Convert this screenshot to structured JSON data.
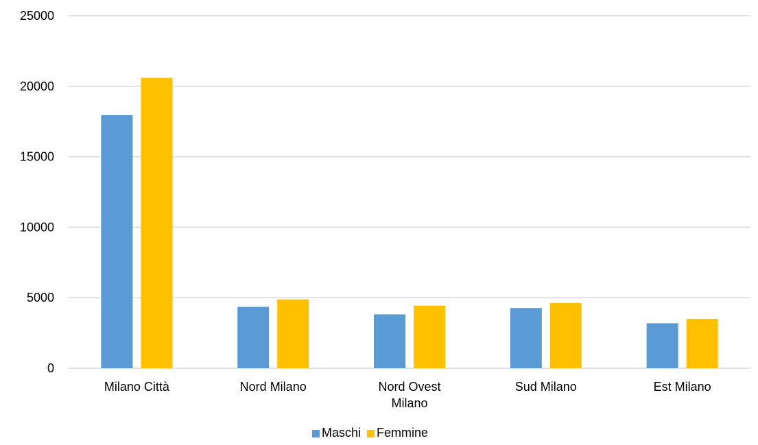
{
  "chart_data": {
    "type": "bar",
    "title": "",
    "xlabel": "",
    "ylabel": "",
    "categories": [
      [
        "Milano Città"
      ],
      [
        "Nord Milano"
      ],
      [
        "Nord Ovest",
        "Milano"
      ],
      [
        "Sud Milano"
      ],
      [
        "Est Milano"
      ]
    ],
    "series": [
      {
        "name": "Maschi",
        "color": "#5b9bd5",
        "values": [
          17950,
          4350,
          3820,
          4270,
          3190
        ]
      },
      {
        "name": "Femmine",
        "color": "#ffc000",
        "values": [
          20600,
          4880,
          4440,
          4620,
          3500
        ]
      }
    ],
    "ylim": [
      0,
      25000
    ],
    "yticks": [
      0,
      5000,
      10000,
      15000,
      20000,
      25000
    ],
    "grid": true,
    "legend_position": "bottom"
  }
}
